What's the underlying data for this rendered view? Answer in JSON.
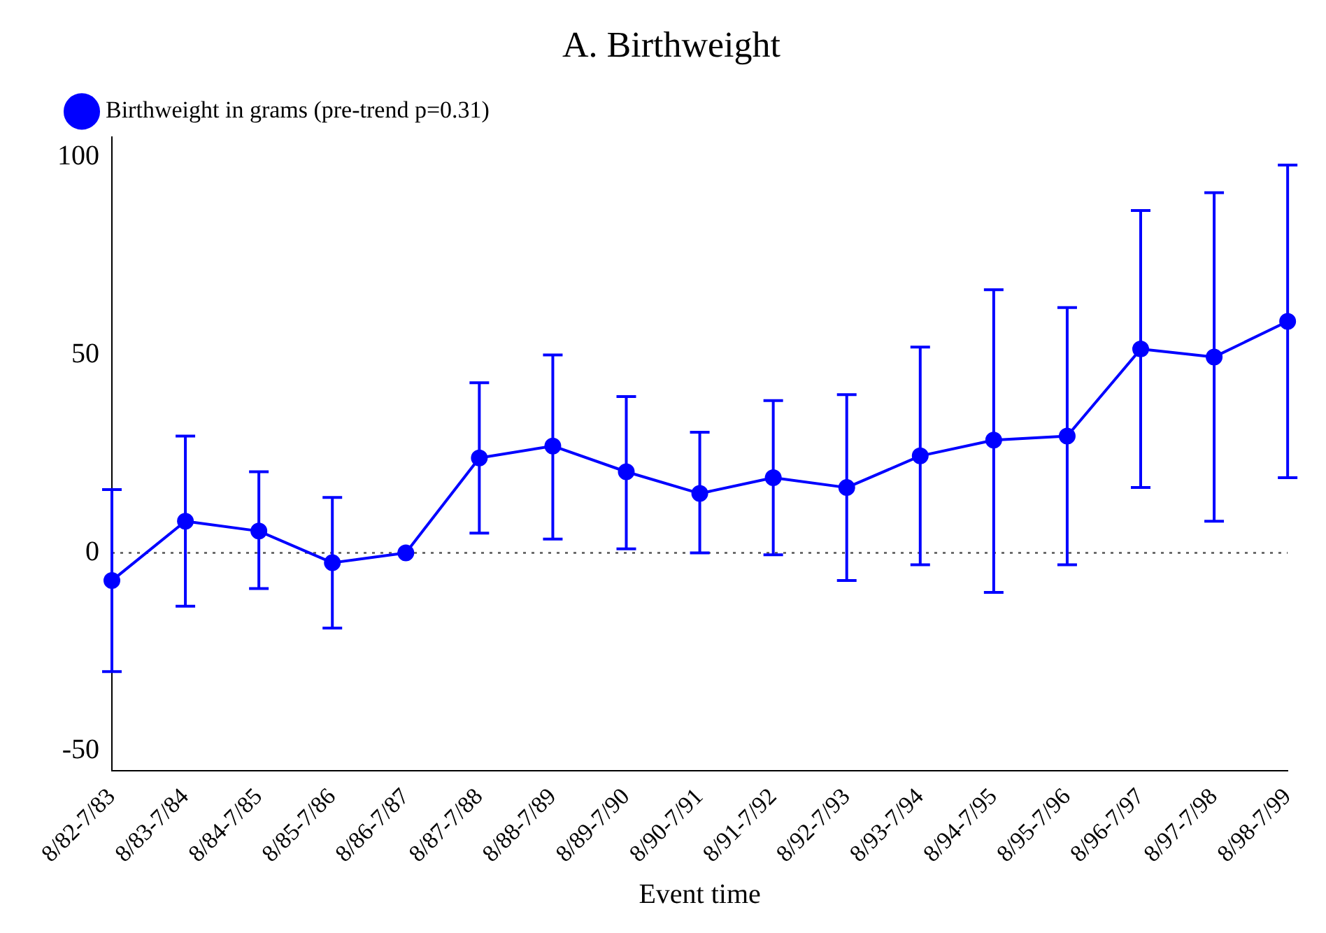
{
  "chart_data": {
    "type": "line",
    "title": "A. Birthweight",
    "xlabel": "Event time",
    "categories": [
      "8/82-7/83",
      "8/83-7/84",
      "8/84-7/85",
      "8/85-7/86",
      "8/86-7/87",
      "8/87-7/88",
      "8/88-7/89",
      "8/89-7/90",
      "8/90-7/91",
      "8/91-7/92",
      "8/92-7/93",
      "8/93-7/94",
      "8/94-7/95",
      "8/95-7/96",
      "8/96-7/97",
      "8/97-7/98",
      "8/98-7/99"
    ],
    "series": [
      {
        "name": "Birthweight in grams (pre-trend p=0.31)",
        "color": "#0000ff",
        "values": [
          -7,
          8,
          5.5,
          -2.5,
          0,
          24,
          27,
          20.5,
          15,
          19,
          16.5,
          24.5,
          28.5,
          29.5,
          51.5,
          49.5,
          58.5
        ],
        "errors": [
          [
            -30,
            16
          ],
          [
            -13.5,
            29.5
          ],
          [
            -9,
            20.5
          ],
          [
            -19,
            14
          ],
          null,
          [
            5,
            43
          ],
          [
            3.5,
            50
          ],
          [
            1,
            39.5
          ],
          [
            0,
            30.5
          ],
          [
            -0.5,
            38.5
          ],
          [
            -7,
            40
          ],
          [
            -3,
            52
          ],
          [
            -10,
            66.5
          ],
          [
            -3,
            62
          ],
          [
            16.5,
            86.5
          ],
          [
            8,
            91
          ],
          [
            19,
            98
          ]
        ]
      }
    ],
    "ylim": [
      -55,
      105
    ],
    "yticks": [
      -50,
      0,
      50,
      100
    ],
    "grid": false,
    "legend": "top left",
    "marker": "circle",
    "line_style": "solid",
    "ref_lines": [
      {
        "axis": "y",
        "value": 0,
        "color": "#555555",
        "line_style": "dotted"
      }
    ]
  }
}
